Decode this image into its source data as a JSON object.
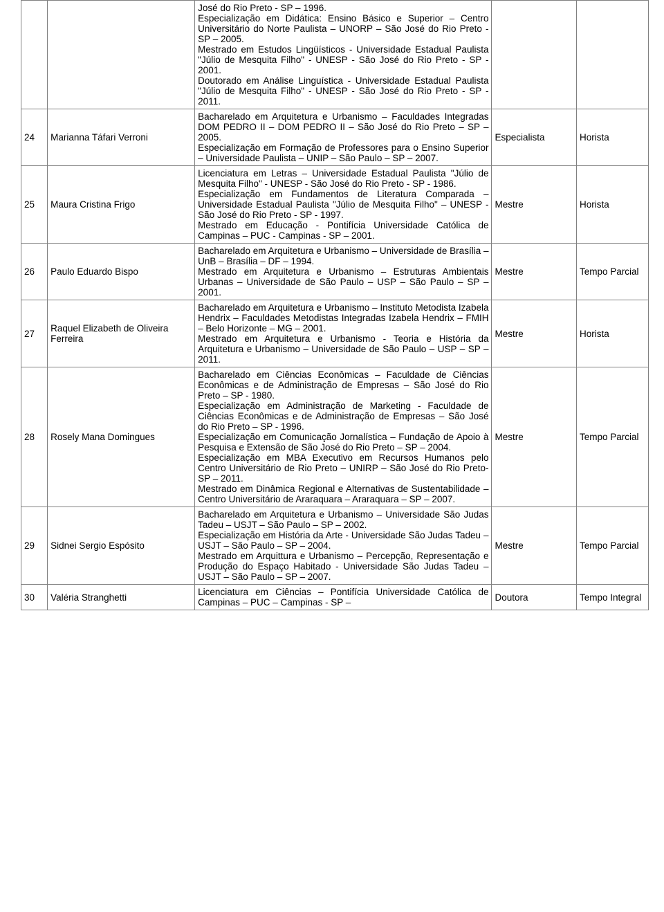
{
  "table": {
    "border_color": "#808080",
    "text_color": "#000000",
    "background_color": "#ffffff",
    "font_family": "Arial",
    "font_size_pt": 10,
    "rows": [
      {
        "num": "",
        "name": "",
        "desc": "José do Rio Preto - SP – 1996.\nEspecialização em Didática: Ensino Básico e Superior – Centro Universitário do Norte Paulista – UNORP – São José do Rio Preto - SP – 2005.\nMestrado em Estudos Lingüísticos - Universidade Estadual Paulista \"Júlio de Mesquita Filho\" - UNESP - São José do Rio Preto - SP - 2001.\nDoutorado em Análise Linguística - Universidade Estadual Paulista \"Júlio de Mesquita Filho\" - UNESP - São José do Rio Preto - SP - 2011.",
        "title": "",
        "regime": ""
      },
      {
        "num": "24",
        "name": "Marianna Táfari Verroni",
        "desc": "Bacharelado em Arquitetura e Urbanismo – Faculdades Integradas DOM PEDRO II – DOM PEDRO II – São José do Rio Preto – SP – 2005.\nEspecialização em Formação de Professores para o Ensino Superior – Universidade Paulista – UNIP – São Paulo – SP – 2007.",
        "title": "Especialista",
        "regime": "Horista"
      },
      {
        "num": "25",
        "name": "Maura Cristina Frigo",
        "desc": "Licenciatura em Letras – Universidade Estadual Paulista \"Júlio de Mesquita Filho\" - UNESP - São José do Rio Preto - SP - 1986.\nEspecialização em Fundamentos de Literatura Comparada – Universidade Estadual Paulista \"Júlio de Mesquita Filho\" – UNESP - São José do Rio Preto - SP - 1997.\nMestrado em Educação - Pontifícia Universidade Católica de Campinas – PUC - Campinas - SP – 2001.",
        "title": "Mestre",
        "regime": "Horista"
      },
      {
        "num": "26",
        "name": "Paulo Eduardo Bispo",
        "desc": "Bacharelado em Arquitetura e Urbanismo – Universidade de Brasília – UnB – Brasília – DF – 1994.\nMestrado em Arquitetura e Urbanismo – Estruturas Ambientais Urbanas – Universidade de São Paulo – USP – São Paulo – SP – 2001.",
        "title": "Mestre",
        "regime": "Tempo Parcial"
      },
      {
        "num": "27",
        "name": "Raquel Elizabeth de Oliveira Ferreira",
        "desc": "Bacharelado em Arquitetura e Urbanismo – Instituto Metodista Izabela Hendrix – Faculdades Metodistas Integradas Izabela Hendrix – FMIH – Belo Horizonte – MG – 2001.\nMestrado em Arquitetura e Urbanismo - Teoria e História da Arquitetura e Urbanismo – Universidade de São Paulo – USP – SP – 2011.",
        "title": "Mestre",
        "regime": "Horista"
      },
      {
        "num": "28",
        "name": "Rosely Mana Domingues",
        "desc": "Bacharelado em Ciências Econômicas – Faculdade de Ciências Econômicas e de Administração de Empresas – São José do Rio Preto – SP - 1980.\nEspecialização em Administração de Marketing - Faculdade de Ciências Econômicas e de Administração de Empresas – São José do Rio Preto – SP - 1996.\nEspecialização em Comunicação Jornalística – Fundação de Apoio à Pesquisa e Extensão de São José do Rio Preto – SP – 2004.\nEspecialização em MBA Executivo em Recursos Humanos pelo Centro Universitário de Rio Preto – UNIRP – São José do Rio Preto-SP – 2011.\nMestrado em Dinâmica Regional e Alternativas de Sustentabilidade – Centro Universitário de Araraquara – Araraquara – SP – 2007.",
        "title": "Mestre",
        "regime": "Tempo Parcial"
      },
      {
        "num": "29",
        "name": "Sidnei Sergio Espósito",
        "desc": "Bacharelado em Arquitetura e Urbanismo – Universidade São Judas Tadeu – USJT – São Paulo – SP – 2002.\nEspecialização em História da Arte - Universidade São Judas Tadeu – USJT – São Paulo – SP – 2004.\nMestrado em Arquittura e Urbanismo – Percepção, Representação e Produção do Espaço Habitado - Universidade São Judas Tadeu – USJT – São Paulo – SP – 2007.",
        "title": "Mestre",
        "regime": "Tempo Parcial"
      },
      {
        "num": "30",
        "name": "Valéria Stranghetti",
        "desc": "Licenciatura em Ciências – Pontifícia Universidade Católica de Campinas –  PUC – Campinas - SP –",
        "title": "Doutora",
        "regime": "Tempo Integral"
      }
    ]
  }
}
